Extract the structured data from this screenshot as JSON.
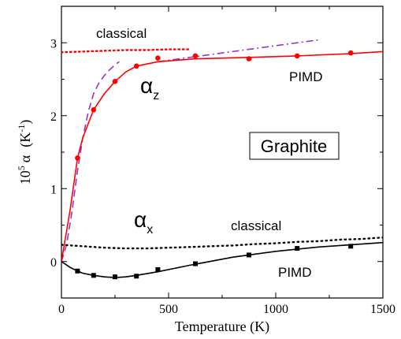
{
  "chart_data": {
    "type": "line",
    "xlabel": "Temperature  (K)",
    "ylabel": {
      "prefix": "10",
      "exponent": "5",
      "symbol": "α",
      "unit_open": "(K",
      "unit_exp": "-1",
      "unit_close": ")"
    },
    "xlim": [
      0,
      1500
    ],
    "ylim": [
      -0.5,
      3.5
    ],
    "xticks": [
      0,
      500,
      1000,
      1500
    ],
    "yticks": [
      0,
      1,
      2,
      3
    ],
    "annotations": {
      "classical_top": "classical",
      "pimd_top": "PIMD",
      "alpha_z": {
        "symbol": "α",
        "sub": "z"
      },
      "alpha_x": {
        "symbol": "α",
        "sub": "x"
      },
      "classical_bottom": "classical",
      "pimd_bottom": "PIMD",
      "box": "Graphite"
    },
    "colors": {
      "red": "#ff0000",
      "purple": "#9933cc",
      "black": "#000000"
    },
    "series": [
      {
        "style": "red-dotted",
        "x": [
          0,
          100,
          200,
          300,
          400,
          500,
          600
        ],
        "y": [
          2.87,
          2.88,
          2.89,
          2.9,
          2.9,
          2.91,
          2.91
        ]
      },
      {
        "style": "purple-dashed",
        "x": [
          0,
          25,
          50,
          75,
          100,
          125,
          150,
          175,
          200,
          225,
          250,
          270
        ],
        "y": [
          0.0,
          0.25,
          0.7,
          1.25,
          1.7,
          2.05,
          2.3,
          2.45,
          2.55,
          2.63,
          2.7,
          2.74
        ]
      },
      {
        "style": "purple-dashdot",
        "x": [
          450,
          550,
          650,
          750,
          850,
          950,
          1050,
          1150,
          1200
        ],
        "y": [
          2.74,
          2.78,
          2.82,
          2.86,
          2.9,
          2.94,
          2.98,
          3.02,
          3.04
        ]
      },
      {
        "style": "red-solid",
        "x": [
          0,
          40,
          75,
          100,
          150,
          200,
          250,
          300,
          350,
          450,
          625,
          875,
          1100,
          1350,
          1500
        ],
        "y": [
          0.0,
          0.7,
          1.42,
          1.7,
          2.08,
          2.3,
          2.47,
          2.6,
          2.68,
          2.74,
          2.78,
          2.8,
          2.82,
          2.85,
          2.88
        ]
      },
      {
        "style": "red-points",
        "x": [
          75,
          150,
          250,
          350,
          450,
          625,
          875,
          1100,
          1350
        ],
        "y": [
          1.42,
          2.08,
          2.47,
          2.68,
          2.79,
          2.82,
          2.78,
          2.82,
          2.86
        ]
      },
      {
        "style": "black-dotted",
        "x": [
          0,
          100,
          200,
          300,
          400,
          500,
          600,
          700,
          800,
          900,
          1000,
          1100,
          1200,
          1300,
          1400,
          1500
        ],
        "y": [
          0.23,
          0.21,
          0.19,
          0.18,
          0.18,
          0.19,
          0.2,
          0.21,
          0.22,
          0.24,
          0.25,
          0.27,
          0.28,
          0.3,
          0.31,
          0.33
        ]
      },
      {
        "style": "black-solid",
        "x": [
          0,
          40,
          75,
          100,
          150,
          200,
          250,
          300,
          350,
          450,
          600,
          800,
          1000,
          1200,
          1400,
          1500
        ],
        "y": [
          0.0,
          -0.08,
          -0.13,
          -0.16,
          -0.19,
          -0.21,
          -0.22,
          -0.21,
          -0.19,
          -0.14,
          -0.05,
          0.06,
          0.14,
          0.2,
          0.24,
          0.26
        ]
      },
      {
        "style": "black-points",
        "x": [
          75,
          150,
          250,
          350,
          450,
          625,
          875,
          1100,
          1350
        ],
        "y": [
          -0.13,
          -0.19,
          -0.21,
          -0.2,
          -0.11,
          -0.03,
          0.09,
          0.18,
          0.21
        ]
      }
    ]
  }
}
